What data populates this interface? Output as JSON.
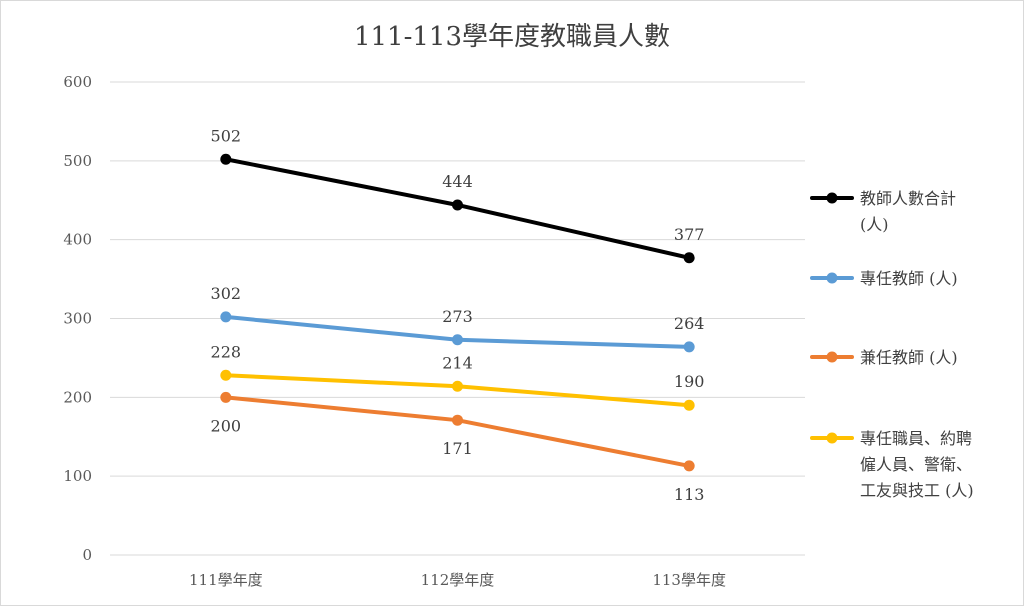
{
  "chart_data": {
    "type": "line",
    "title": "111-113學年度教職員人數",
    "categories": [
      "111學年度",
      "112學年度",
      "113學年度"
    ],
    "ylim": [
      0,
      600
    ],
    "yticks": [
      0,
      100,
      200,
      300,
      400,
      500,
      600
    ],
    "grid": true,
    "legend_position": "right",
    "series": [
      {
        "name": "教師人數合計 (人)",
        "legend_lines": [
          "教師人數合計",
          "(人)"
        ],
        "color": "#000000",
        "values": [
          502,
          444,
          377
        ],
        "label_pos": "above"
      },
      {
        "name": "專任教師 (人)",
        "legend_lines": [
          "專任教師 (人)"
        ],
        "color": "#5b9bd5",
        "values": [
          302,
          273,
          264
        ],
        "label_pos": "above"
      },
      {
        "name": "兼任教師 (人)",
        "legend_lines": [
          "兼任教師 (人)"
        ],
        "color": "#ed7d31",
        "values": [
          200,
          171,
          113
        ],
        "label_pos": "below"
      },
      {
        "name": "專任職員、約聘僱人員、警衛、工友與技工 (人)",
        "legend_lines": [
          "專任職員、約聘",
          "僱人員、警衛、",
          "工友與技工 (人)"
        ],
        "color": "#ffc000",
        "values": [
          228,
          214,
          190
        ],
        "label_pos": "above"
      }
    ]
  }
}
